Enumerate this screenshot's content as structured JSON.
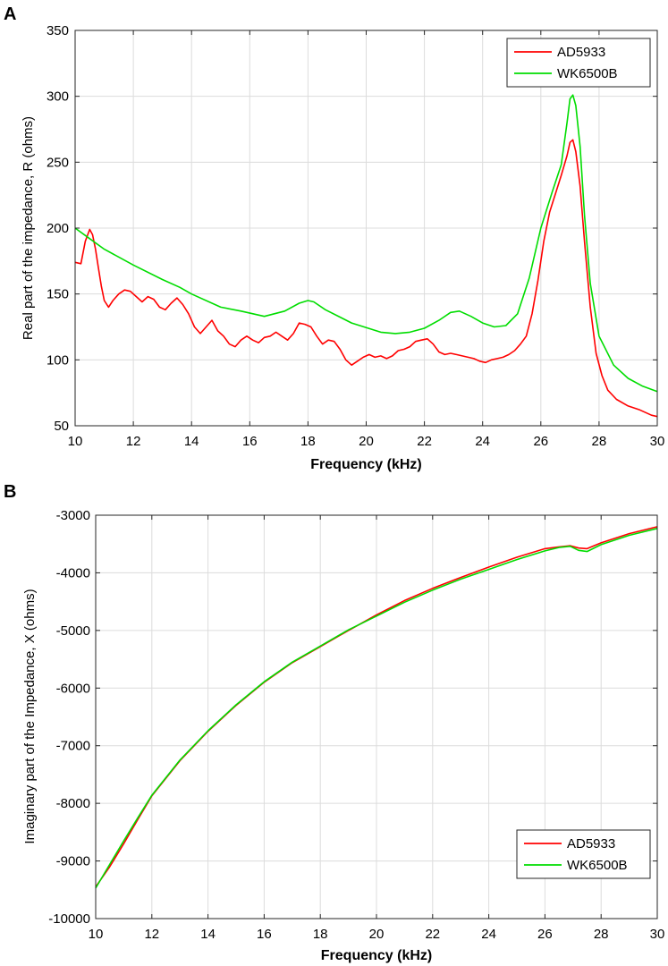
{
  "chart_data": [
    {
      "panel_label": "A",
      "type": "line",
      "xlabel": "Frequency (kHz)",
      "ylabel": "Real part of the impedance, R (ohms)",
      "xlim": [
        10,
        30
      ],
      "ylim": [
        50,
        350
      ],
      "xticks": [
        10,
        12,
        14,
        16,
        18,
        20,
        22,
        24,
        26,
        28,
        30
      ],
      "yticks": [
        50,
        100,
        150,
        200,
        250,
        300,
        350
      ],
      "grid": true,
      "legend_position": "top-right",
      "series": [
        {
          "name": "AD5933",
          "color": "#ff0000",
          "x": [
            10.0,
            10.2,
            10.35,
            10.5,
            10.6,
            10.7,
            10.8,
            10.9,
            11.0,
            11.15,
            11.3,
            11.5,
            11.7,
            11.9,
            12.1,
            12.3,
            12.5,
            12.7,
            12.9,
            13.1,
            13.3,
            13.5,
            13.7,
            13.9,
            14.1,
            14.3,
            14.5,
            14.7,
            14.9,
            15.1,
            15.3,
            15.5,
            15.7,
            15.9,
            16.1,
            16.3,
            16.5,
            16.7,
            16.9,
            17.1,
            17.3,
            17.5,
            17.7,
            17.9,
            18.1,
            18.3,
            18.5,
            18.7,
            18.9,
            19.1,
            19.3,
            19.5,
            19.7,
            19.9,
            20.1,
            20.3,
            20.5,
            20.7,
            20.9,
            21.1,
            21.3,
            21.5,
            21.7,
            21.9,
            22.1,
            22.3,
            22.5,
            22.7,
            22.9,
            23.1,
            23.3,
            23.5,
            23.7,
            23.9,
            24.1,
            24.3,
            24.5,
            24.7,
            24.9,
            25.1,
            25.3,
            25.5,
            25.7,
            25.9,
            26.1,
            26.3,
            26.5,
            26.7,
            26.9,
            27.0,
            27.1,
            27.2,
            27.35,
            27.5,
            27.7,
            27.9,
            28.1,
            28.3,
            28.6,
            29.0,
            29.4,
            29.8,
            30.0
          ],
          "y": [
            174,
            173,
            190,
            199,
            195,
            184,
            170,
            156,
            145,
            140,
            145,
            150,
            153,
            152,
            148,
            144,
            148,
            146,
            140,
            138,
            143,
            147,
            142,
            135,
            125,
            120,
            125,
            130,
            122,
            118,
            112,
            110,
            115,
            118,
            115,
            113,
            117,
            118,
            121,
            118,
            115,
            120,
            128,
            127,
            125,
            118,
            112,
            115,
            114,
            108,
            100,
            96,
            99,
            102,
            104,
            102,
            103,
            101,
            103,
            107,
            108,
            110,
            114,
            115,
            116,
            112,
            106,
            104,
            105,
            104,
            103,
            102,
            101,
            99,
            98,
            100,
            101,
            102,
            104,
            107,
            112,
            118,
            135,
            160,
            190,
            212,
            226,
            240,
            255,
            265,
            267,
            258,
            232,
            190,
            140,
            105,
            88,
            77,
            70,
            65,
            62,
            58,
            57
          ]
        },
        {
          "name": "WK6500B",
          "color": "#00dd00",
          "x": [
            10.0,
            10.5,
            11.0,
            12.0,
            13.0,
            13.6,
            14.0,
            15.0,
            15.7,
            16.5,
            17.2,
            17.7,
            18.0,
            18.2,
            18.6,
            19.5,
            20.5,
            21.0,
            21.5,
            22.0,
            22.5,
            22.9,
            23.2,
            23.6,
            24.0,
            24.4,
            24.8,
            25.2,
            25.6,
            26.0,
            26.4,
            26.7,
            26.9,
            27.0,
            27.1,
            27.2,
            27.35,
            27.5,
            27.7,
            28.0,
            28.5,
            29.0,
            29.5,
            30.0
          ],
          "y": [
            200,
            192,
            184,
            172,
            161,
            155,
            150,
            140,
            137,
            133,
            137,
            143,
            145,
            144,
            138,
            128,
            121,
            120,
            121,
            124,
            130,
            136,
            137,
            133,
            128,
            125,
            126,
            135,
            162,
            200,
            228,
            248,
            280,
            298,
            301,
            293,
            262,
            210,
            158,
            118,
            96,
            86,
            80,
            76
          ]
        }
      ]
    },
    {
      "panel_label": "B",
      "type": "line",
      "xlabel": "Frequency (kHz)",
      "ylabel": "Imaginary part of the Impedance, X (ohms)",
      "xlim": [
        10,
        30
      ],
      "ylim": [
        -10000,
        -3000
      ],
      "xticks": [
        10,
        12,
        14,
        16,
        18,
        20,
        22,
        24,
        26,
        28,
        30
      ],
      "yticks": [
        -10000,
        -9000,
        -8000,
        -7000,
        -6000,
        -5000,
        -4000,
        -3000
      ],
      "grid": true,
      "legend_position": "bottom-right",
      "series": [
        {
          "name": "AD5933",
          "color": "#ff0000",
          "x": [
            10.0,
            10.5,
            11.0,
            11.5,
            12.0,
            13.0,
            14.0,
            15.0,
            16.0,
            17.0,
            18.0,
            19.0,
            20.0,
            21.0,
            22.0,
            23.0,
            24.0,
            25.0,
            26.0,
            26.5,
            26.9,
            27.2,
            27.5,
            28.0,
            29.0,
            30.0
          ],
          "y": [
            -9450,
            -9100,
            -8700,
            -8280,
            -7870,
            -7260,
            -6750,
            -6300,
            -5900,
            -5560,
            -5280,
            -5000,
            -4730,
            -4480,
            -4270,
            -4080,
            -3900,
            -3730,
            -3580,
            -3550,
            -3530,
            -3570,
            -3580,
            -3480,
            -3320,
            -3200
          ]
        },
        {
          "name": "WK6500B",
          "color": "#00dd00",
          "x": [
            10.0,
            10.5,
            11.0,
            11.5,
            12.0,
            13.0,
            14.0,
            15.0,
            16.0,
            17.0,
            18.0,
            19.0,
            20.0,
            21.0,
            22.0,
            23.0,
            24.0,
            25.0,
            26.0,
            26.5,
            26.9,
            27.2,
            27.5,
            28.0,
            29.0,
            30.0
          ],
          "y": [
            -9470,
            -9060,
            -8650,
            -8250,
            -7860,
            -7250,
            -6740,
            -6290,
            -5890,
            -5550,
            -5270,
            -4990,
            -4750,
            -4510,
            -4300,
            -4110,
            -3940,
            -3770,
            -3620,
            -3560,
            -3540,
            -3610,
            -3630,
            -3510,
            -3350,
            -3230
          ]
        }
      ]
    }
  ]
}
